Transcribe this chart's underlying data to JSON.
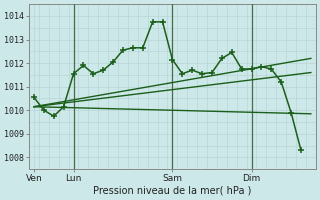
{
  "bg_color": "#cde8e8",
  "grid_color": "#b8d4d4",
  "line_color": "#1a5e1a",
  "title": "Pression niveau de la mer( hPa )",
  "yticks": [
    1008,
    1009,
    1010,
    1011,
    1012,
    1013,
    1014
  ],
  "ylim": [
    1007.6,
    1014.5
  ],
  "xtick_labels": [
    "Ven",
    "Lun",
    "Sam",
    "Dim"
  ],
  "xtick_positions": [
    0,
    4,
    14,
    22
  ],
  "vlines": [
    4,
    14,
    22
  ],
  "xlim": [
    -0.5,
    28
  ],
  "series1_x": [
    0,
    1,
    2,
    3,
    4,
    5,
    6,
    7,
    8,
    9,
    10,
    11,
    12,
    13,
    14,
    15,
    16,
    17,
    18,
    19,
    20,
    21,
    22,
    23,
    24,
    25,
    26,
    27
  ],
  "series1_y": [
    1010.55,
    1010.0,
    1009.75,
    1010.15,
    1011.55,
    1011.9,
    1011.55,
    1011.7,
    1012.05,
    1012.55,
    1012.65,
    1012.65,
    1013.75,
    1013.75,
    1012.15,
    1011.55,
    1011.7,
    1011.55,
    1011.6,
    1012.2,
    1012.45,
    1011.75,
    1011.75,
    1011.85,
    1011.75,
    1011.2,
    1009.9,
    1008.3
  ],
  "line2_x": [
    0,
    28
  ],
  "line2_y": [
    1010.15,
    1012.2
  ],
  "line3_x": [
    0,
    28
  ],
  "line3_y": [
    1010.15,
    1011.6
  ],
  "line4_x": [
    0,
    28
  ],
  "line4_y": [
    1010.15,
    1009.85
  ]
}
